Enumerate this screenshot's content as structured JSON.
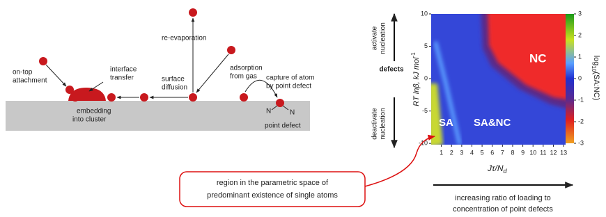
{
  "diagram": {
    "labels": {
      "on_top": [
        "on-top",
        "attachment"
      ],
      "interface": [
        "interface",
        "transfer"
      ],
      "re_evaporation": "re-evaporation",
      "surface": [
        "surface",
        "diffusion"
      ],
      "adsorption": [
        "adsorption",
        "from gas"
      ],
      "capture": [
        "capture of atom",
        "by point defect"
      ],
      "embedding": [
        "embedding",
        "into cluster"
      ],
      "point_defect": "point defect",
      "n_left": "N",
      "n_right": "N"
    }
  },
  "chart_data": {
    "type": "heatmap",
    "x_label": {
      "main": "Jτ/N",
      "sub": "d"
    },
    "y_label": {
      "main": "RT lnβ, kJ mol",
      "sup": "-1"
    },
    "xlim": [
      0,
      13.2
    ],
    "xticks": [
      1,
      2,
      3,
      4,
      5,
      6,
      7,
      8,
      9,
      10,
      11,
      12,
      13
    ],
    "ylim": [
      -10.2,
      10
    ],
    "yticks": [
      10,
      5,
      0,
      -5,
      -10
    ],
    "colorbar": {
      "label": {
        "main": "log",
        "sub": "10",
        "rest": "(SA:NC)"
      },
      "lim": [
        -3,
        3
      ],
      "ticks": [
        3,
        2,
        1,
        0,
        -1,
        -2,
        -3
      ]
    },
    "regions": [
      "NC",
      "SA",
      "SA&NC"
    ],
    "side_labels": {
      "top": [
        "activate",
        "nucleation"
      ],
      "middle": "defects",
      "bottom": [
        "deactivate",
        "nucleation"
      ]
    }
  },
  "callout": [
    "region in the parametric space of",
    "predominant existence of single atoms"
  ],
  "trend": [
    "increasing ratio of loading to",
    "concentration of point defects"
  ]
}
